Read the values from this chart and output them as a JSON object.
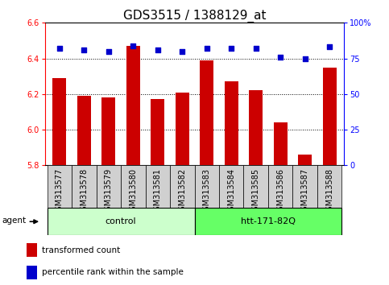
{
  "title": "GDS3515 / 1388129_at",
  "samples": [
    "GSM313577",
    "GSM313578",
    "GSM313579",
    "GSM313580",
    "GSM313581",
    "GSM313582",
    "GSM313583",
    "GSM313584",
    "GSM313585",
    "GSM313586",
    "GSM313587",
    "GSM313588"
  ],
  "bar_values": [
    6.29,
    6.19,
    6.18,
    6.47,
    6.17,
    6.21,
    6.39,
    6.27,
    6.22,
    6.04,
    5.86,
    6.35
  ],
  "percentile_values": [
    82,
    81,
    80,
    84,
    81,
    80,
    82,
    82,
    82,
    76,
    75,
    83
  ],
  "bar_color": "#cc0000",
  "dot_color": "#0000cc",
  "ylim_left": [
    5.8,
    6.6
  ],
  "ylim_right": [
    0,
    100
  ],
  "yticks_left": [
    5.8,
    6.0,
    6.2,
    6.4,
    6.6
  ],
  "yticks_right": [
    0,
    25,
    50,
    75,
    100
  ],
  "ytick_labels_right": [
    "0",
    "25",
    "50",
    "75",
    "100%"
  ],
  "grid_values": [
    6.0,
    6.2,
    6.4
  ],
  "control_label": "control",
  "treatment_label": "htt-171-82Q",
  "agent_label": "agent",
  "legend_bar_label": "transformed count",
  "legend_dot_label": "percentile rank within the sample",
  "control_color": "#ccffcc",
  "treatment_color": "#66ff66",
  "sample_box_color": "#d0d0d0",
  "title_fontsize": 11,
  "tick_fontsize": 7,
  "label_fontsize": 7,
  "bar_width": 0.55,
  "dot_size": 18,
  "n_control": 6,
  "n_treatment": 6
}
